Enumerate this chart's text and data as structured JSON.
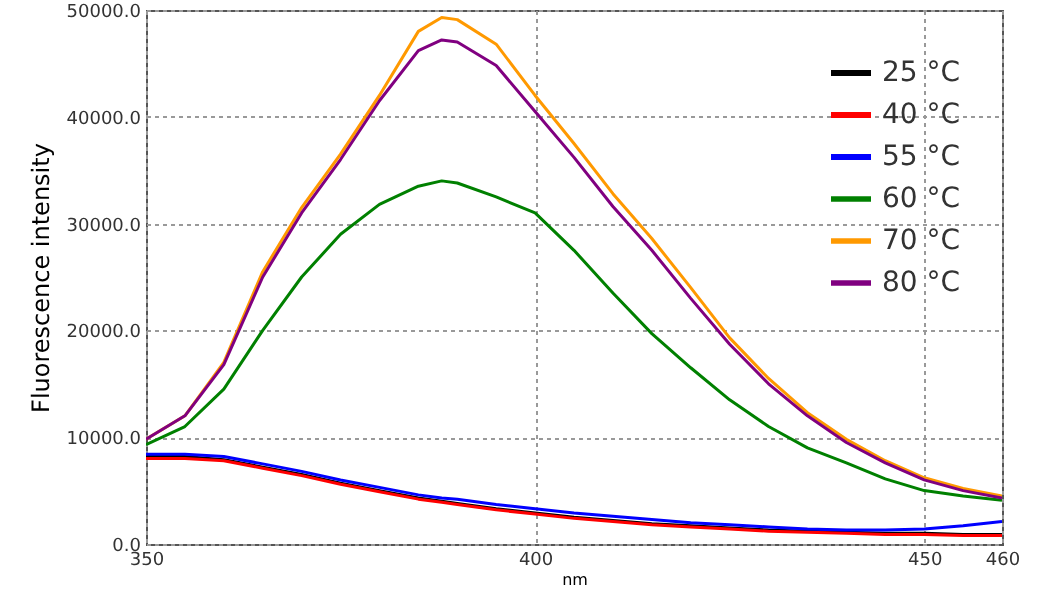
{
  "chart_data": {
    "type": "line",
    "xlabel": "nm",
    "ylabel": "Fluorescence intensity",
    "xlim": [
      350,
      460
    ],
    "xticks": [
      350,
      400,
      450,
      460
    ],
    "ylim": [
      0,
      50000
    ],
    "yticks": [
      {
        "value": 0,
        "label": "0.0"
      },
      {
        "value": 10000,
        "label": "10000.0"
      },
      {
        "value": 20000,
        "label": "20000.0"
      },
      {
        "value": 30000,
        "label": "30000.0"
      },
      {
        "value": 40000,
        "label": "40000.0"
      },
      {
        "value": 50000,
        "label": "50000.0"
      }
    ],
    "grid": true,
    "legend": "top right",
    "line_style": "solid",
    "x": [
      350,
      355,
      360,
      365,
      370,
      375,
      380,
      385,
      388,
      390,
      395,
      400,
      405,
      410,
      415,
      420,
      425,
      430,
      435,
      440,
      445,
      450,
      455,
      460
    ],
    "series": [
      {
        "name": "25 °C",
        "color": "#000000",
        "values": [
          8200,
          8200,
          7900,
          7200,
          6500,
          5700,
          5000,
          4300,
          4000,
          3800,
          3300,
          2900,
          2500,
          2200,
          1900,
          1700,
          1500,
          1300,
          1200,
          1100,
          1000,
          1000,
          900,
          900
        ]
      },
      {
        "name": "40 °C",
        "color": "#ff0000",
        "values": [
          8000,
          8000,
          7800,
          7100,
          6400,
          5600,
          4900,
          4200,
          3900,
          3700,
          3200,
          2800,
          2400,
          2100,
          1800,
          1600,
          1400,
          1200,
          1100,
          1000,
          900,
          900,
          800,
          800
        ]
      },
      {
        "name": "55 °C",
        "color": "#0000ff",
        "values": [
          8400,
          8400,
          8200,
          7500,
          6800,
          6000,
          5300,
          4600,
          4300,
          4200,
          3700,
          3300,
          2900,
          2600,
          2300,
          2000,
          1800,
          1600,
          1400,
          1300,
          1300,
          1400,
          1700,
          2100
        ]
      },
      {
        "name": "60 °C",
        "color": "#008000",
        "values": [
          9300,
          11000,
          14500,
          20000,
          25000,
          29000,
          31800,
          33500,
          34000,
          33800,
          32500,
          31000,
          27500,
          23500,
          19700,
          16500,
          13500,
          11000,
          9000,
          7600,
          6100,
          5000,
          4500,
          4100
        ]
      },
      {
        "name": "70 °C",
        "color": "#ff9900",
        "values": [
          9800,
          12000,
          17000,
          25500,
          31500,
          36500,
          42000,
          48000,
          49300,
          49100,
          46800,
          42000,
          37500,
          32800,
          28600,
          24000,
          19300,
          15500,
          12300,
          9800,
          7800,
          6200,
          5200,
          4500
        ]
      },
      {
        "name": "80 °C",
        "color": "#800080",
        "values": [
          9800,
          12000,
          16800,
          25000,
          31000,
          36000,
          41500,
          46200,
          47200,
          47000,
          44800,
          40500,
          36200,
          31600,
          27500,
          23000,
          18700,
          15000,
          12000,
          9500,
          7600,
          6000,
          5000,
          4300
        ]
      }
    ]
  }
}
